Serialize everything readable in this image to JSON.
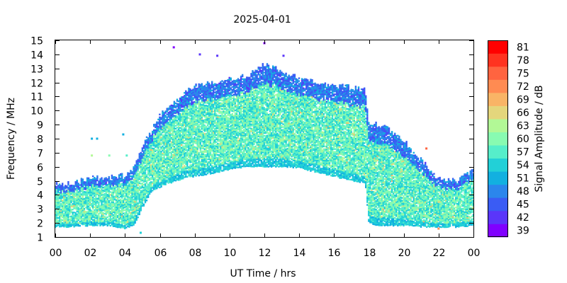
{
  "chart_data": {
    "type": "heatmap",
    "title": "2025-04-01",
    "xlabel": "UT Time / hrs",
    "ylabel": "Frequency / MHz",
    "colorbar_label": "Signal Amplitude / dB",
    "xlim": [
      0,
      24
    ],
    "ylim": [
      1,
      15
    ],
    "x_tick_labels": [
      "00",
      "02",
      "04",
      "06",
      "08",
      "10",
      "12",
      "14",
      "16",
      "18",
      "20",
      "22",
      "00"
    ],
    "y_tick_labels": [
      "1",
      "2",
      "3",
      "4",
      "5",
      "6",
      "7",
      "8",
      "9",
      "10",
      "11",
      "12",
      "13",
      "14",
      "15"
    ],
    "colorbar_ticks": [
      "39",
      "42",
      "45",
      "48",
      "51",
      "54",
      "57",
      "60",
      "63",
      "66",
      "69",
      "72",
      "75",
      "78",
      "81"
    ],
    "colorbar_colors": [
      "#8000ff",
      "#5a36fa",
      "#3a5cf4",
      "#2b86ec",
      "#12b0e0",
      "#22d0d7",
      "#56eeca",
      "#88fbb1",
      "#b2f896",
      "#e4d67c",
      "#f9b466",
      "#ff8b52",
      "#ff6440",
      "#ff3320",
      "#ff0000"
    ],
    "frequency_envelope": {
      "hours": [
        0,
        1,
        2,
        3,
        4,
        4.5,
        5,
        5.5,
        6,
        6.5,
        7,
        7.5,
        8,
        9,
        10,
        11,
        12,
        13,
        14,
        15,
        16,
        17,
        17.8,
        18,
        18.5,
        19,
        20,
        21,
        22,
        23,
        24
      ],
      "min_mhz": [
        1.7,
        1.7,
        1.8,
        1.8,
        1.6,
        1.8,
        3.0,
        4.2,
        4.5,
        4.8,
        5.0,
        5.2,
        5.3,
        5.5,
        5.8,
        6.0,
        6.0,
        6.0,
        5.9,
        5.6,
        5.3,
        5.0,
        4.8,
        2.0,
        1.8,
        1.8,
        1.8,
        1.7,
        1.7,
        1.7,
        1.8
      ],
      "max_mhz": [
        4.8,
        4.8,
        5.2,
        5.2,
        5.4,
        6.0,
        7.5,
        8.6,
        9.6,
        10.3,
        10.8,
        11.3,
        11.7,
        12.0,
        12.2,
        12.5,
        13.3,
        12.8,
        12.3,
        12.0,
        11.8,
        11.6,
        11.5,
        9.0,
        9.0,
        8.8,
        7.8,
        6.5,
        5.2,
        5.0,
        5.8
      ]
    },
    "sparse_points": [
      {
        "hour": 6.8,
        "mhz": 14.5,
        "db": 39
      },
      {
        "hour": 8.3,
        "mhz": 14.0,
        "db": 42
      },
      {
        "hour": 9.3,
        "mhz": 13.9,
        "db": 42
      },
      {
        "hour": 12.0,
        "mhz": 14.8,
        "db": 39
      },
      {
        "hour": 13.1,
        "mhz": 13.9,
        "db": 42
      },
      {
        "hour": 2.1,
        "mhz": 8.0,
        "db": 51
      },
      {
        "hour": 2.4,
        "mhz": 8.0,
        "db": 51
      },
      {
        "hour": 3.9,
        "mhz": 8.3,
        "db": 51
      },
      {
        "hour": 2.1,
        "mhz": 6.8,
        "db": 63
      },
      {
        "hour": 3.1,
        "mhz": 6.8,
        "db": 60
      },
      {
        "hour": 4.1,
        "mhz": 6.8,
        "db": 57
      },
      {
        "hour": 21.3,
        "mhz": 7.3,
        "db": 75
      },
      {
        "hour": 22.0,
        "mhz": 1.6,
        "db": 72
      },
      {
        "hour": 4.9,
        "mhz": 1.3,
        "db": 54
      }
    ]
  }
}
